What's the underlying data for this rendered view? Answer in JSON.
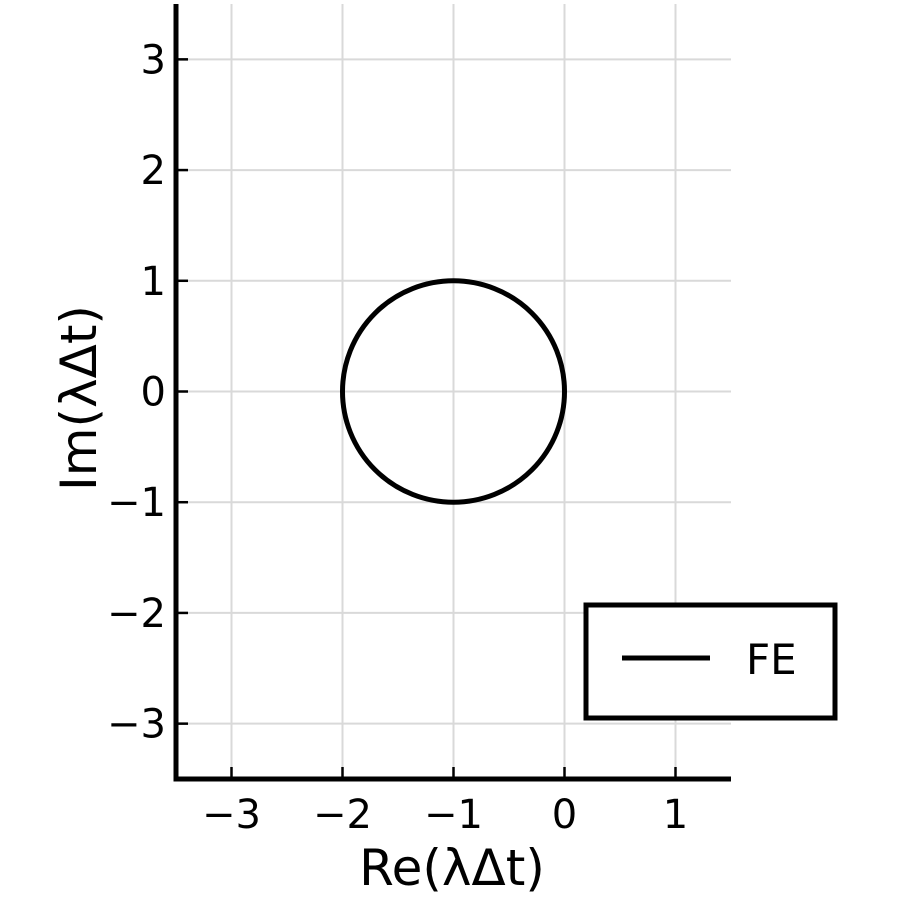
{
  "chart_data": {
    "type": "line",
    "title": "",
    "xlabel": "Re(λΔt)",
    "ylabel": "Im(λΔt)",
    "xlim": [
      -3.5,
      1.5
    ],
    "ylim": [
      -3.5,
      3.5
    ],
    "xticks": [
      -3,
      -2,
      -1,
      0,
      1
    ],
    "yticks": [
      -3,
      -2,
      -1,
      0,
      1,
      2,
      3
    ],
    "xtick_labels": [
      "−3",
      "−2",
      "−1",
      "0",
      "1"
    ],
    "ytick_labels": [
      "−3",
      "−2",
      "−1",
      "0",
      "1",
      "2",
      "3"
    ],
    "grid": true,
    "legend_position": "bottom-right",
    "series": [
      {
        "name": "FE",
        "shape": "circle",
        "center": [
          -1,
          0
        ],
        "radius": 1,
        "color": "#000000"
      }
    ]
  }
}
